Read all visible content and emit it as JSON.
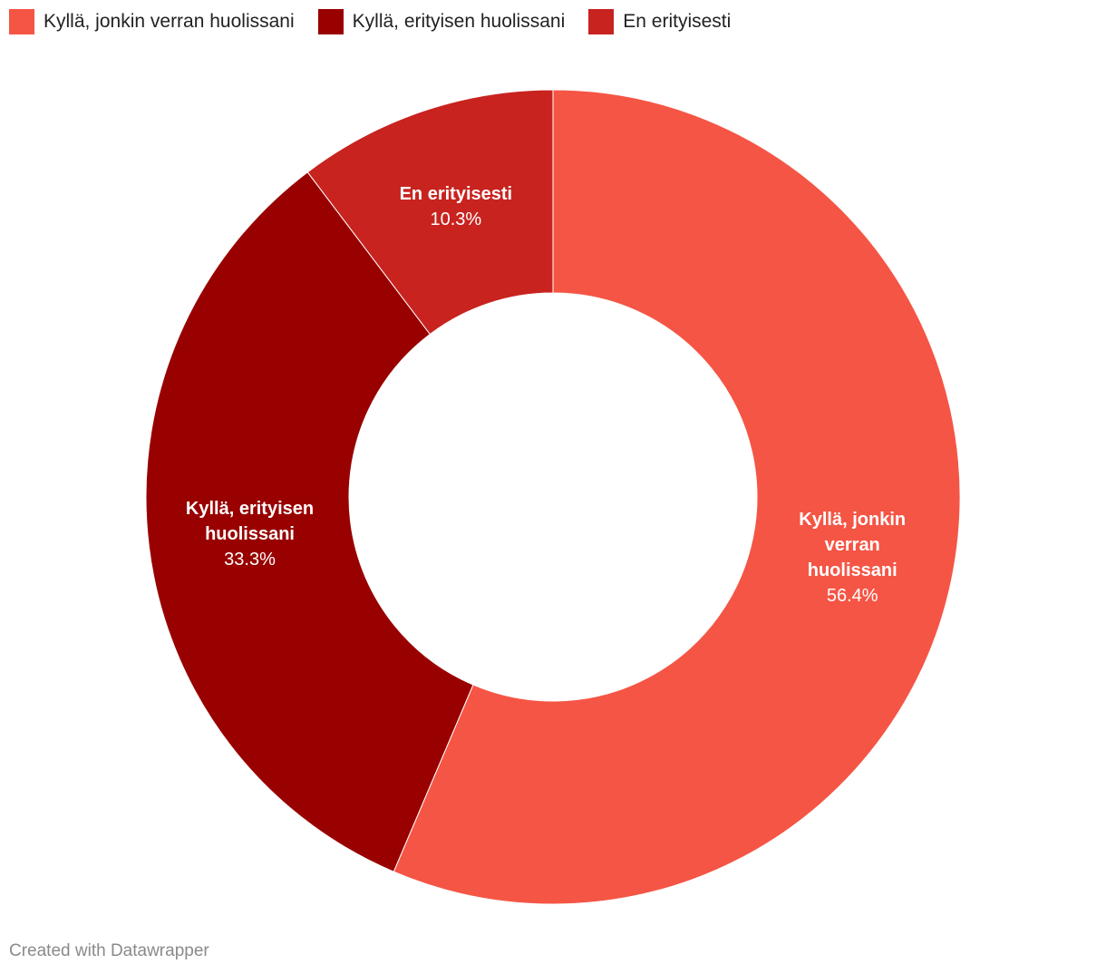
{
  "chart_data": {
    "type": "pie",
    "categories": [
      "Kyllä, jonkin verran huolissani",
      "Kyllä, erityisen huolissani",
      "En erityisesti"
    ],
    "values": [
      56.4,
      33.3,
      10.3
    ],
    "value_labels": [
      "56.4%",
      "33.3%",
      "10.3%"
    ],
    "colors": [
      "#f55545",
      "#990000",
      "#c8231f"
    ],
    "legend": "top-left"
  },
  "credit": "Created with Datawrapper"
}
